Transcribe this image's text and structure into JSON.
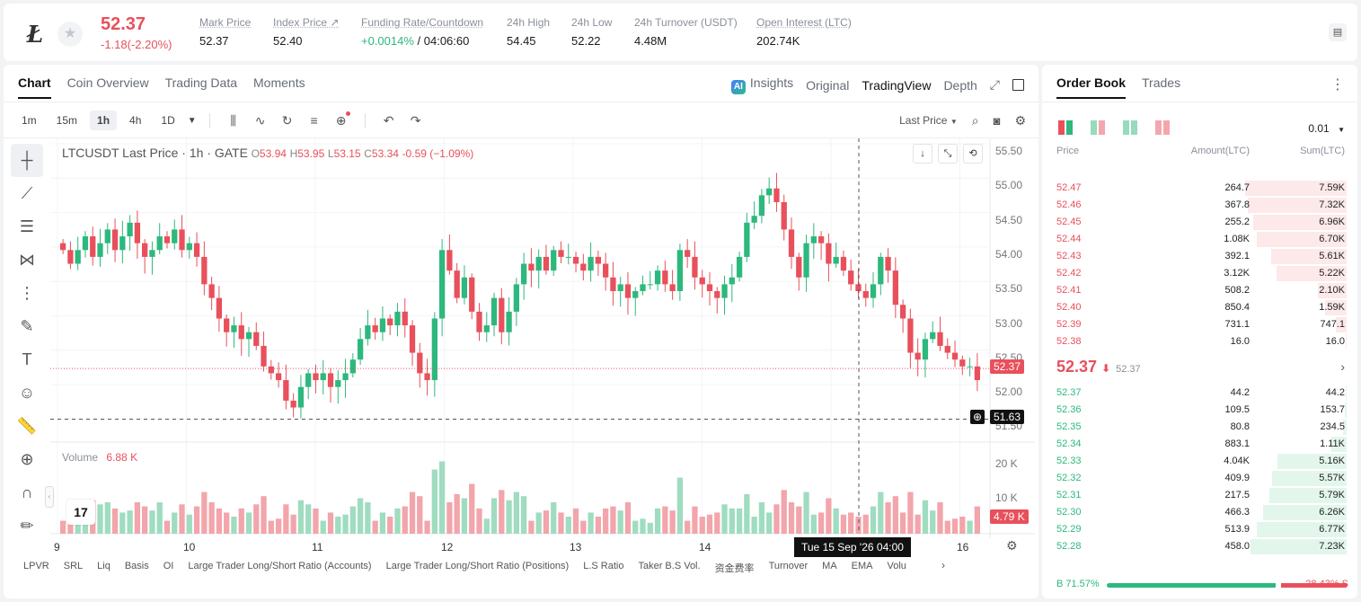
{
  "header": {
    "last_price": "52.37",
    "change": "-1.18(-2.20%)",
    "stats": [
      {
        "label": "Mark Price",
        "value": "52.37"
      },
      {
        "label": "Index Price ↗",
        "value": "52.40"
      },
      {
        "label": "Funding Rate/Countdown",
        "value_up": "+0.0014%",
        "value_rest": " / 04:06:60"
      },
      {
        "label": "24h High",
        "value": "54.45"
      },
      {
        "label": "24h Low",
        "value": "52.22"
      },
      {
        "label": "24h Turnover (USDT)",
        "value": "4.48M"
      },
      {
        "label": "Open Interest (LTC)",
        "value": "202.74K"
      }
    ],
    "logo_glyph": "Ł",
    "star_glyph": "★"
  },
  "chart_tabs": [
    "Chart",
    "Coin Overview",
    "Trading Data",
    "Moments"
  ],
  "view_tabs": {
    "insights": "Insights",
    "ai_badge": "AI",
    "original": "Original",
    "tradingview": "TradingView",
    "depth": "Depth"
  },
  "toolbar": {
    "timeframes": [
      "1m",
      "15m",
      "1h",
      "4h",
      "1D"
    ],
    "active_timeframe": "1h",
    "price_type": "Last Price"
  },
  "legend": {
    "title": "LTCUSDT Last Price · 1h · GATE",
    "o_label": "O",
    "o": "53.94",
    "h_label": "H",
    "h": "53.95",
    "l_label": "L",
    "l": "53.15",
    "c_label": "C",
    "c": "53.34",
    "chg": "-0.59 (−1.09%)"
  },
  "volume_legend": {
    "label": "Volume",
    "value": "6.88 K"
  },
  "tv_logo": "17",
  "price_axis": [
    "55.50",
    "55.00",
    "54.50",
    "54.00",
    "53.50",
    "53.00",
    "52.50",
    "52.00",
    "51.50"
  ],
  "volume_axis": [
    "20 K",
    "10 K"
  ],
  "current_price_tag": "52.37",
  "cross_price_tag": "51.63",
  "current_volume_tag": "4.79 K",
  "time_axis": [
    "9",
    "10",
    "11",
    "12",
    "13",
    "14",
    "16"
  ],
  "crosshair_time": "Tue 15 Sep '26   04:00",
  "bottom_indicators": [
    "LPVR",
    "SRL",
    "Liq",
    "Basis",
    "OI",
    "Large Trader Long/Short Ratio (Accounts)",
    "Large Trader Long/Short Ratio (Positions)",
    "L.S Ratio",
    "Taker B.S Vol.",
    "资金费率",
    "Turnover",
    "MA",
    "EMA",
    "Volu"
  ],
  "chart_data": {
    "type": "candlestick",
    "title": "LTCUSDT Last Price · 1h · GATE",
    "ylim": [
      51.4,
      55.6
    ],
    "x_ticks": [
      "9",
      "10",
      "11",
      "12",
      "13",
      "14",
      "16"
    ],
    "ohlc_close_path": [
      54.1,
      53.9,
      54.1,
      54.3,
      54.0,
      54.2,
      54.4,
      54.1,
      54.3,
      54.5,
      54.2,
      54.0,
      54.1,
      54.3,
      54.2,
      54.4,
      54.1,
      54.2,
      54.0,
      53.6,
      53.4,
      53.1,
      52.9,
      53.0,
      52.8,
      52.9,
      52.7,
      52.4,
      52.3,
      52.2,
      51.9,
      51.8,
      52.1,
      52.3,
      52.2,
      52.3,
      52.1,
      52.2,
      52.3,
      52.5,
      52.8,
      53.0,
      52.9,
      53.1,
      53.0,
      53.2,
      53.0,
      52.6,
      52.3,
      52.2,
      53.1,
      54.1,
      53.8,
      53.4,
      53.7,
      53.2,
      52.9,
      53.0,
      53.4,
      52.9,
      53.2,
      53.6,
      53.9,
      53.8,
      54.0,
      53.8,
      54.1,
      54.0,
      54.0,
      53.9,
      53.8,
      54.0,
      53.9,
      53.7,
      53.5,
      53.6,
      53.4,
      53.5,
      53.6,
      53.6,
      53.8,
      53.6,
      53.5,
      54.1,
      54.0,
      53.7,
      53.6,
      53.5,
      53.4,
      53.6,
      53.7,
      54.0,
      54.5,
      54.6,
      54.9,
      55.0,
      54.8,
      54.4,
      54.0,
      53.7,
      54.2,
      54.3,
      54.2,
      53.9,
      54.0,
      53.8,
      53.6,
      53.5,
      53.4,
      53.6,
      54.0,
      53.8,
      53.3,
      53.1,
      52.6,
      52.5,
      52.8,
      52.9,
      52.7,
      52.6,
      52.5,
      52.4,
      52.4,
      52.2
    ],
    "volume_max_k": 25,
    "volume_ticks_k": [
      10,
      20
    ],
    "last_volume_k": 4.79
  },
  "orderbook": {
    "tabs": [
      "Order Book",
      "Trades"
    ],
    "precision": "0.01",
    "headers": {
      "price": "Price",
      "amount": "Amount(LTC)",
      "sum": "Sum(LTC)"
    },
    "asks": [
      {
        "price": "52.47",
        "amount": "264.7",
        "sum": "7.59K",
        "depth": 0.96
      },
      {
        "price": "52.46",
        "amount": "367.8",
        "sum": "7.32K",
        "depth": 0.93
      },
      {
        "price": "52.45",
        "amount": "255.2",
        "sum": "6.96K",
        "depth": 0.88
      },
      {
        "price": "52.44",
        "amount": "1.08K",
        "sum": "6.70K",
        "depth": 0.85
      },
      {
        "price": "52.43",
        "amount": "392.1",
        "sum": "5.61K",
        "depth": 0.71
      },
      {
        "price": "52.42",
        "amount": "3.12K",
        "sum": "5.22K",
        "depth": 0.66
      },
      {
        "price": "52.41",
        "amount": "508.2",
        "sum": "2.10K",
        "depth": 0.27
      },
      {
        "price": "52.40",
        "amount": "850.4",
        "sum": "1.59K",
        "depth": 0.2
      },
      {
        "price": "52.39",
        "amount": "731.1",
        "sum": "747.1",
        "depth": 0.1
      },
      {
        "price": "52.38",
        "amount": "16.0",
        "sum": "16.0",
        "depth": 0.01
      }
    ],
    "mid": {
      "price": "52.37",
      "arrow": "⬇",
      "mark": "52.37"
    },
    "bids": [
      {
        "price": "52.37",
        "amount": "44.2",
        "sum": "44.2",
        "depth": 0.01
      },
      {
        "price": "52.36",
        "amount": "109.5",
        "sum": "153.7",
        "depth": 0.02
      },
      {
        "price": "52.35",
        "amount": "80.8",
        "sum": "234.5",
        "depth": 0.03
      },
      {
        "price": "52.34",
        "amount": "883.1",
        "sum": "1.11K",
        "depth": 0.14
      },
      {
        "price": "52.33",
        "amount": "4.04K",
        "sum": "5.16K",
        "depth": 0.65
      },
      {
        "price": "52.32",
        "amount": "409.9",
        "sum": "5.57K",
        "depth": 0.7
      },
      {
        "price": "52.31",
        "amount": "217.5",
        "sum": "5.79K",
        "depth": 0.73
      },
      {
        "price": "52.30",
        "amount": "466.3",
        "sum": "6.26K",
        "depth": 0.79
      },
      {
        "price": "52.29",
        "amount": "513.9",
        "sum": "6.77K",
        "depth": 0.85
      },
      {
        "price": "52.28",
        "amount": "458.0",
        "sum": "7.23K",
        "depth": 0.91
      }
    ],
    "buy_ratio": "B 71.57%",
    "sell_ratio": "28.43% S",
    "buy_fraction": 0.7157
  },
  "colors": {
    "up": "#2db87d",
    "down": "#e8505b",
    "bid_bg": "#e3f6ec",
    "ask_bg": "#fde9ea"
  }
}
